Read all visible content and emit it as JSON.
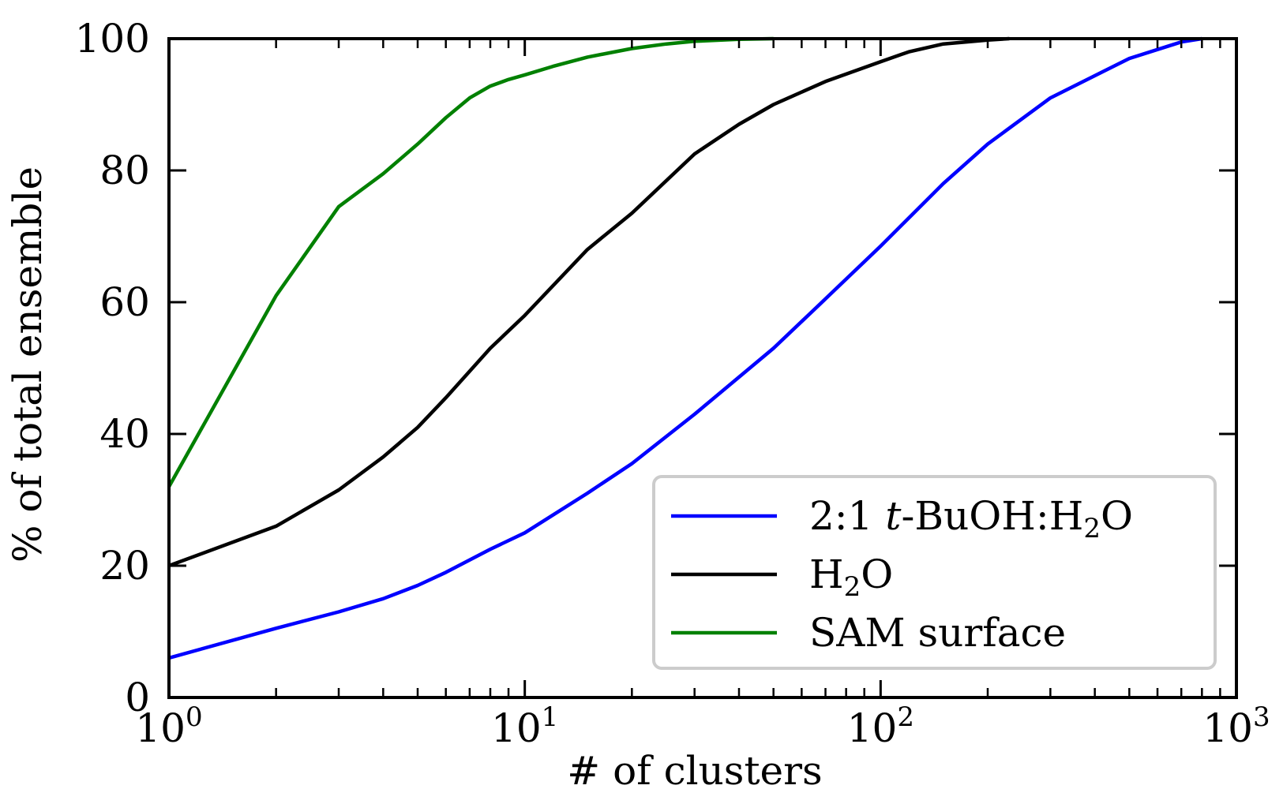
{
  "chart_data": {
    "type": "line",
    "xscale": "log",
    "xlim": [
      1,
      1000
    ],
    "ylim": [
      0,
      100
    ],
    "xlabel": "# of clusters",
    "ylabel": "% of total ensemble",
    "grid": false,
    "legend_position": "bottom-right",
    "x_ticks": [
      {
        "base": "10",
        "exp": "0",
        "value": 1
      },
      {
        "base": "10",
        "exp": "1",
        "value": 10
      },
      {
        "base": "10",
        "exp": "2",
        "value": 100
      },
      {
        "base": "10",
        "exp": "3",
        "value": 1000
      }
    ],
    "y_ticks": [
      "0",
      "20",
      "40",
      "60",
      "80",
      "100"
    ],
    "series": [
      {
        "name": "2:1 t-BuOH:H2O",
        "legend": {
          "pre": "2:1 ",
          "italic": "t",
          "mid": "-BuOH:H",
          "sub": "2",
          "post": "O"
        },
        "color": "#0000ff",
        "x": [
          1,
          2,
          3,
          4,
          5,
          6,
          8,
          10,
          15,
          20,
          30,
          50,
          70,
          100,
          150,
          200,
          300,
          500,
          700,
          800
        ],
        "y": [
          6,
          10.5,
          13,
          15,
          17,
          19,
          22.5,
          25,
          31,
          35.5,
          43,
          53,
          60.5,
          68.5,
          78,
          84,
          91,
          97,
          99.5,
          100
        ]
      },
      {
        "name": "H2O",
        "legend": {
          "pre": "",
          "italic": "",
          "mid": "H",
          "sub": "2",
          "post": "O"
        },
        "color": "#000000",
        "x": [
          1,
          2,
          3,
          4,
          5,
          6,
          8,
          10,
          15,
          20,
          30,
          40,
          50,
          70,
          100,
          120,
          150,
          200,
          230
        ],
        "y": [
          20,
          26,
          31.5,
          36.5,
          41,
          45.5,
          53,
          58,
          68,
          73.5,
          82.5,
          87,
          90,
          93.5,
          96.5,
          98,
          99.2,
          99.8,
          100
        ]
      },
      {
        "name": "SAM surface",
        "legend": {
          "pre": "",
          "italic": "",
          "mid": "SAM surface",
          "sub": "",
          "post": ""
        },
        "color": "#008000",
        "x": [
          1,
          2,
          3,
          4,
          5,
          6,
          7,
          8,
          9,
          10,
          12,
          15,
          20,
          25,
          30,
          40,
          50
        ],
        "y": [
          32,
          61,
          74.5,
          79.5,
          84,
          88,
          91,
          92.8,
          93.8,
          94.5,
          95.8,
          97.2,
          98.5,
          99.2,
          99.6,
          99.9,
          100
        ]
      }
    ]
  }
}
